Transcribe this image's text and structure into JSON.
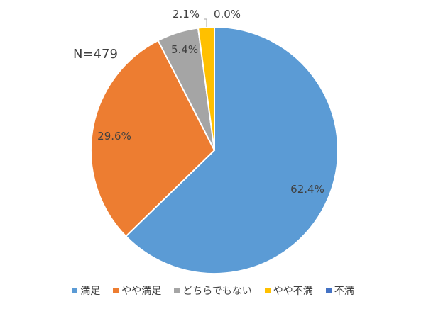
{
  "chart_data": {
    "type": "pie",
    "annotation": "N=479",
    "categories": [
      "満足",
      "やや満足",
      "どちらでもない",
      "やや不満",
      "不満"
    ],
    "values": [
      62.4,
      29.6,
      5.4,
      2.1,
      0.0
    ],
    "labels": [
      "62.4%",
      "29.6%",
      "5.4%",
      "2.1%",
      "0.0%"
    ],
    "colors": [
      "#5b9bd5",
      "#ed7d31",
      "#a5a5a5",
      "#ffc000",
      "#4472c4"
    ],
    "start_angle": "12 o'clock",
    "direction": "clockwise",
    "legend_position": "bottom"
  }
}
